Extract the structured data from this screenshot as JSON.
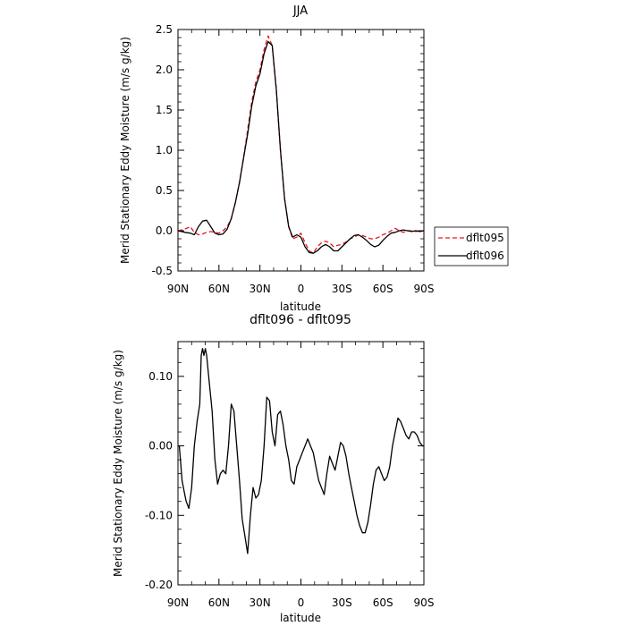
{
  "chart_data": [
    {
      "type": "line",
      "title": "JJA",
      "xlabel": "latitude",
      "ylabel": "Merid Stationary Eddy Moisture (m/s g/kg)",
      "xlim": [
        90,
        -90
      ],
      "ylim": [
        -0.5,
        2.5
      ],
      "x_ticks": [
        90,
        60,
        30,
        0,
        -30,
        -60,
        -90
      ],
      "x_tick_labels": [
        "90N",
        "60N",
        "30N",
        "0",
        "30S",
        "60S",
        "90S"
      ],
      "y_ticks": [
        -0.5,
        0,
        0.5,
        1,
        1.5,
        2,
        2.5
      ],
      "y_tick_labels": [
        "-0.5",
        "0.0",
        "0.5",
        "1.0",
        "1.5",
        "2.0",
        "2.5"
      ],
      "grid": false,
      "legend_position": "outside-right",
      "series": [
        {
          "name": "dflt095",
          "color": "#e8141c",
          "dash": "dashed",
          "x": [
            90,
            85,
            81,
            78,
            75,
            72,
            69,
            66,
            63,
            60,
            57,
            54,
            51,
            48,
            45,
            42,
            39,
            36,
            33,
            30,
            27,
            24,
            21,
            18,
            15,
            12,
            9,
            6,
            3,
            0,
            -3,
            -6,
            -9,
            -12,
            -15,
            -18,
            -21,
            -24,
            -27,
            -30,
            -33,
            -36,
            -39,
            -42,
            -45,
            -48,
            -51,
            -54,
            -57,
            -60,
            -63,
            -66,
            -69,
            -72,
            -75,
            -78,
            -81,
            -84,
            -87,
            -90
          ],
          "values": [
            0.0,
            0.02,
            0.05,
            -0.02,
            -0.05,
            -0.04,
            -0.02,
            -0.01,
            -0.02,
            -0.03,
            0.0,
            0.05,
            0.15,
            0.35,
            0.6,
            0.9,
            1.25,
            1.6,
            1.85,
            2.0,
            2.25,
            2.42,
            2.3,
            1.75,
            1.0,
            0.4,
            0.05,
            -0.1,
            -0.08,
            -0.03,
            -0.15,
            -0.25,
            -0.28,
            -0.2,
            -0.15,
            -0.13,
            -0.15,
            -0.2,
            -0.18,
            -0.17,
            -0.14,
            -0.1,
            -0.08,
            -0.05,
            -0.06,
            -0.08,
            -0.1,
            -0.1,
            -0.08,
            -0.05,
            -0.03,
            0.0,
            0.03,
            0.0,
            -0.02,
            0.0,
            0.0,
            -0.01,
            0.0,
            0.0
          ]
        },
        {
          "name": "dflt096",
          "color": "#000000",
          "dash": "solid",
          "x": [
            90,
            85,
            81,
            78,
            75,
            72,
            69,
            66,
            63,
            60,
            57,
            54,
            51,
            48,
            45,
            42,
            39,
            36,
            33,
            30,
            27,
            24,
            21,
            18,
            15,
            12,
            9,
            6,
            3,
            0,
            -3,
            -6,
            -9,
            -12,
            -15,
            -18,
            -21,
            -24,
            -27,
            -30,
            -33,
            -36,
            -39,
            -42,
            -45,
            -48,
            -51,
            -54,
            -57,
            -60,
            -63,
            -66,
            -69,
            -72,
            -75,
            -78,
            -81,
            -84,
            -87,
            -90
          ],
          "values": [
            0.0,
            -0.02,
            -0.03,
            -0.05,
            0.05,
            0.12,
            0.13,
            0.05,
            -0.03,
            -0.05,
            -0.04,
            0.02,
            0.15,
            0.35,
            0.6,
            0.9,
            1.2,
            1.55,
            1.8,
            1.95,
            2.2,
            2.35,
            2.3,
            1.75,
            1.0,
            0.4,
            0.05,
            -0.08,
            -0.05,
            -0.08,
            -0.2,
            -0.27,
            -0.28,
            -0.25,
            -0.2,
            -0.17,
            -0.2,
            -0.25,
            -0.25,
            -0.2,
            -0.15,
            -0.1,
            -0.06,
            -0.05,
            -0.08,
            -0.12,
            -0.17,
            -0.2,
            -0.18,
            -0.12,
            -0.07,
            -0.03,
            -0.02,
            0.0,
            0.01,
            0.0,
            -0.01,
            0.0,
            -0.01,
            0.0
          ]
        }
      ]
    },
    {
      "type": "line",
      "title": "dflt096 - dflt095",
      "xlabel": "latitude",
      "ylabel": "Merid Stationary Eddy Moisture (m/s g/kg)",
      "xlim": [
        90,
        -90
      ],
      "ylim": [
        -0.2,
        0.15
      ],
      "x_ticks": [
        90,
        60,
        30,
        0,
        -30,
        -60,
        -90
      ],
      "x_tick_labels": [
        "90N",
        "60N",
        "30N",
        "0",
        "30S",
        "60S",
        "90S"
      ],
      "y_ticks": [
        -0.2,
        -0.1,
        0,
        0.1
      ],
      "y_tick_labels": [
        "-0.20",
        "-0.10",
        "0.00",
        "0.10"
      ],
      "grid": false,
      "series": [
        {
          "color": "#000000",
          "dash": "solid",
          "x": [
            90,
            89,
            87,
            85,
            84,
            82,
            80,
            78,
            76,
            74,
            73,
            72,
            71,
            70,
            69,
            67,
            65,
            63,
            61,
            59,
            57,
            55,
            53,
            51,
            49,
            47,
            45,
            43,
            41,
            39,
            37,
            35,
            33,
            31,
            29,
            27,
            25,
            23,
            21,
            19,
            17,
            15,
            13,
            11,
            9,
            7,
            5,
            3,
            1,
            -1,
            -3,
            -5,
            -7,
            -9,
            -11,
            -13,
            -15,
            -17,
            -19,
            -21,
            -23,
            -25,
            -27,
            -29,
            -31,
            -33,
            -35,
            -37,
            -39,
            -41,
            -43,
            -45,
            -47,
            -49,
            -51,
            -53,
            -55,
            -57,
            -59,
            -61,
            -63,
            -65,
            -67,
            -69,
            -71,
            -73,
            -75,
            -77,
            -79,
            -81,
            -83,
            -85,
            -87,
            -89,
            -90
          ],
          "values": [
            0.0,
            0.0,
            -0.05,
            -0.07,
            -0.08,
            -0.09,
            -0.06,
            0.0,
            0.035,
            0.06,
            0.13,
            0.14,
            0.13,
            0.14,
            0.13,
            0.09,
            0.05,
            -0.02,
            -0.055,
            -0.04,
            -0.035,
            -0.04,
            0.0,
            0.06,
            0.05,
            0.0,
            -0.05,
            -0.105,
            -0.13,
            -0.155,
            -0.1,
            -0.06,
            -0.075,
            -0.07,
            -0.05,
            0.0,
            0.07,
            0.065,
            0.02,
            0.0,
            0.045,
            0.05,
            0.03,
            0.0,
            -0.02,
            -0.05,
            -0.055,
            -0.03,
            -0.02,
            -0.01,
            0.0,
            0.01,
            0.0,
            -0.01,
            -0.03,
            -0.05,
            -0.06,
            -0.07,
            -0.04,
            -0.015,
            -0.025,
            -0.035,
            -0.015,
            0.005,
            0.0,
            -0.015,
            -0.04,
            -0.06,
            -0.08,
            -0.1,
            -0.115,
            -0.125,
            -0.125,
            -0.11,
            -0.085,
            -0.055,
            -0.035,
            -0.03,
            -0.04,
            -0.05,
            -0.045,
            -0.03,
            0.0,
            0.02,
            0.04,
            0.035,
            0.025,
            0.015,
            0.01,
            0.02,
            0.02,
            0.015,
            0.005,
            0.0,
            0.0
          ]
        }
      ]
    }
  ]
}
